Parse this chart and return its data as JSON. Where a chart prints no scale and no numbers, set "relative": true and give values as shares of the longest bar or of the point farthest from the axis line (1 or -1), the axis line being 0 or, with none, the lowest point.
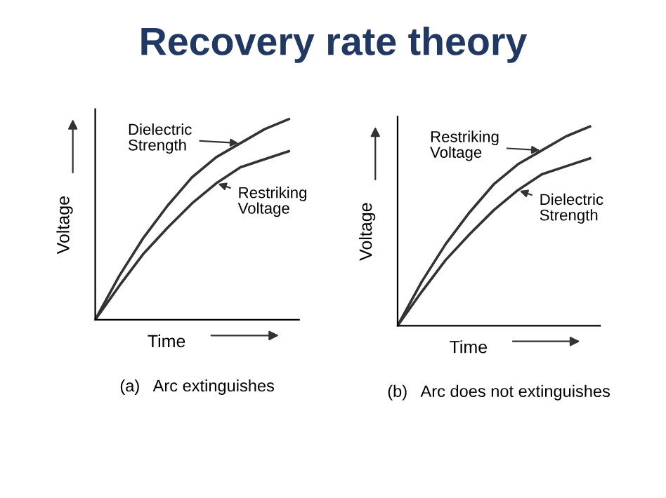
{
  "chart_data": [
    {
      "type": "line",
      "title": "Recovery rate theory",
      "xlabel": "Time",
      "ylabel": "Voltage",
      "relative": true,
      "marker": "none",
      "line_style": "solid",
      "grid": false,
      "categories": [
        null,
        null,
        null,
        null,
        null,
        null,
        null,
        null,
        null
      ],
      "series": [
        {
          "name": "Dielectric Strength",
          "color": "#333333",
          "values": [
            0,
            0.22,
            0.41,
            0.57,
            0.71,
            0.81,
            0.88,
            0.95,
            1.0
          ]
        },
        {
          "name": "Restriking Voltage",
          "color": "#333333",
          "values": [
            0,
            0.17,
            0.33,
            0.46,
            0.58,
            0.68,
            0.76,
            0.8,
            0.84
          ]
        }
      ],
      "annotations": [
        "(a)   Arc extinguishes"
      ]
    },
    {
      "type": "line",
      "xlabel": "Time",
      "ylabel": "Voltage",
      "relative": true,
      "marker": "none",
      "line_style": "solid",
      "grid": false,
      "categories": [
        null,
        null,
        null,
        null,
        null,
        null,
        null,
        null,
        null
      ],
      "series": [
        {
          "name": "Restriking Voltage",
          "color": "#333333",
          "values": [
            0,
            0.22,
            0.41,
            0.57,
            0.71,
            0.81,
            0.88,
            0.95,
            1.0
          ]
        },
        {
          "name": "Dielectric Strength",
          "color": "#333333",
          "values": [
            0,
            0.17,
            0.33,
            0.46,
            0.58,
            0.68,
            0.76,
            0.8,
            0.84
          ]
        }
      ],
      "annotations": [
        "(b)   Arc does not extinguishes"
      ]
    }
  ]
}
